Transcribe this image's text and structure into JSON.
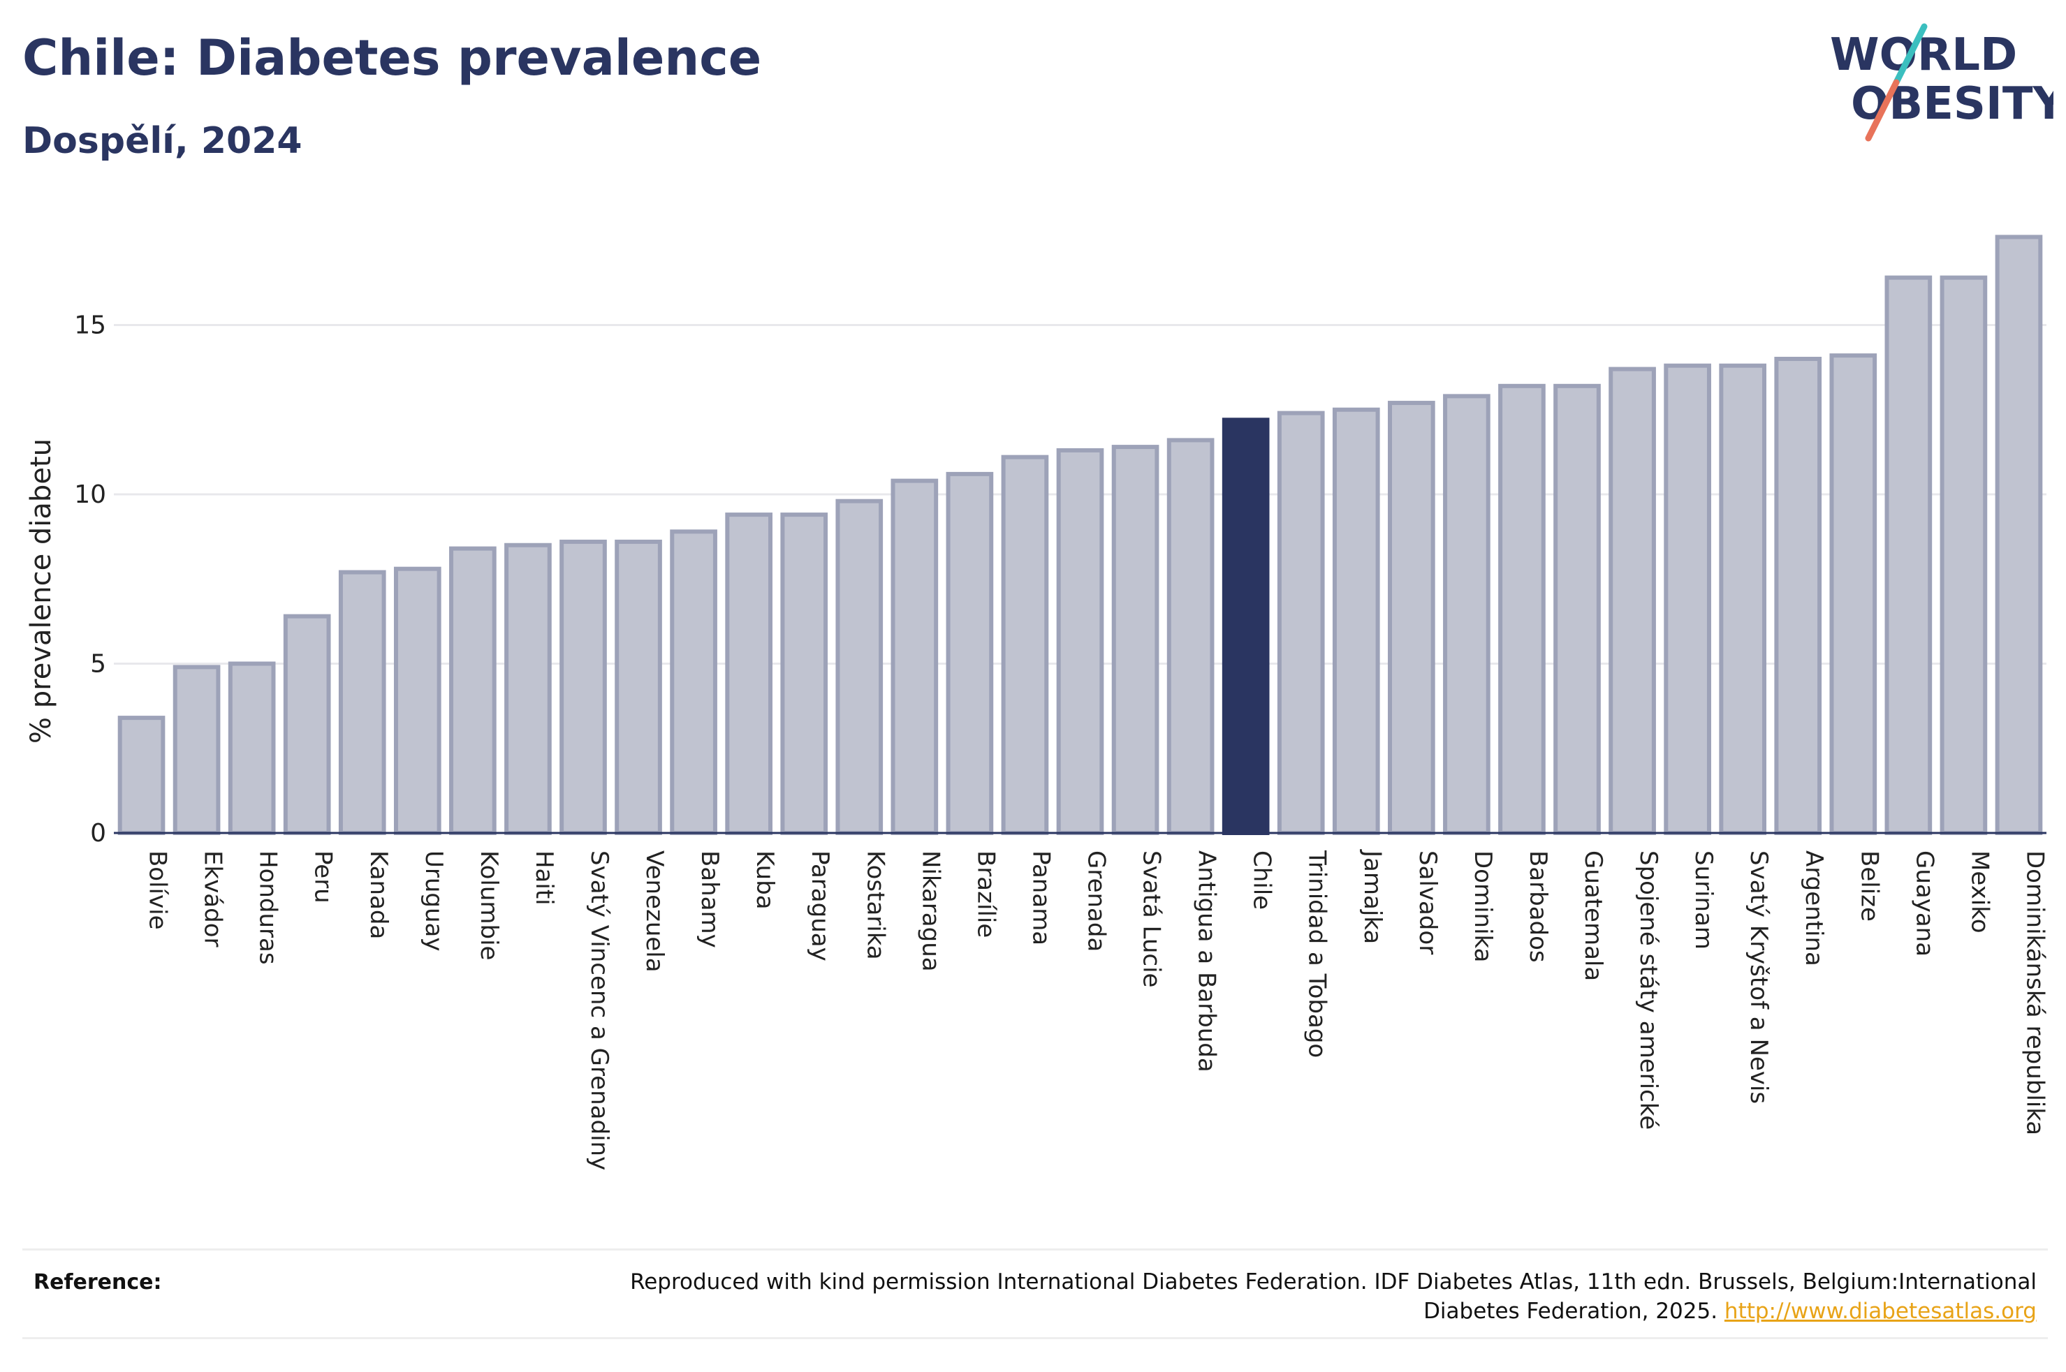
{
  "header": {
    "title": "Chile: Diabetes prevalence",
    "subtitle": "Dospělí, 2024"
  },
  "logo": {
    "line1": "WORLD",
    "line2": "OBESITY"
  },
  "chart_data": {
    "type": "bar",
    "ylabel": "% prevalence diabetu",
    "xlabel": "",
    "ylim": [
      0,
      18
    ],
    "yticks": [
      0,
      5,
      10,
      15
    ],
    "grid": true,
    "highlight": "Chile",
    "colors": {
      "bar": "#c0c3d0",
      "bar_border": "#9da2b8",
      "highlight": "#2a3561"
    },
    "categories": [
      "Bolívie",
      "Ekvádor",
      "Honduras",
      "Peru",
      "Kanada",
      "Uruguay",
      "Kolumbie",
      "Haiti",
      "Svatý Vincenc a Grenadiny",
      "Venezuela",
      "Bahamy",
      "Kuba",
      "Paraguay",
      "Kostarika",
      "Nikaragua",
      "Brazílie",
      "Panama",
      "Grenada",
      "Svatá Lucie",
      "Antigua a Barbuda",
      "Chile",
      "Trinidad a Tobago",
      "Jamajka",
      "Salvador",
      "Dominika",
      "Barbados",
      "Guatemala",
      "Spojené státy americké",
      "Surinam",
      "Svatý Kryštof a Nevis",
      "Argentina",
      "Belize",
      "Guayana",
      "Mexiko",
      "Dominikánská republika"
    ],
    "values": [
      3.4,
      4.9,
      5.0,
      6.4,
      7.7,
      7.8,
      8.4,
      8.5,
      8.6,
      8.6,
      8.9,
      9.4,
      9.4,
      9.8,
      10.4,
      10.6,
      11.1,
      11.3,
      11.4,
      11.6,
      12.2,
      12.4,
      12.5,
      12.7,
      12.9,
      13.2,
      13.2,
      13.7,
      13.8,
      13.8,
      14.0,
      14.1,
      16.4,
      16.4,
      17.6
    ]
  },
  "footer": {
    "reference_label": "Reference:",
    "reference_text": "Reproduced with kind permission International Diabetes Federation. IDF Diabetes Atlas, 11th edn. Brussels, Belgium:International Diabetes Federation, 2025.",
    "reference_link": "http://www.diabetesatlas.org"
  }
}
